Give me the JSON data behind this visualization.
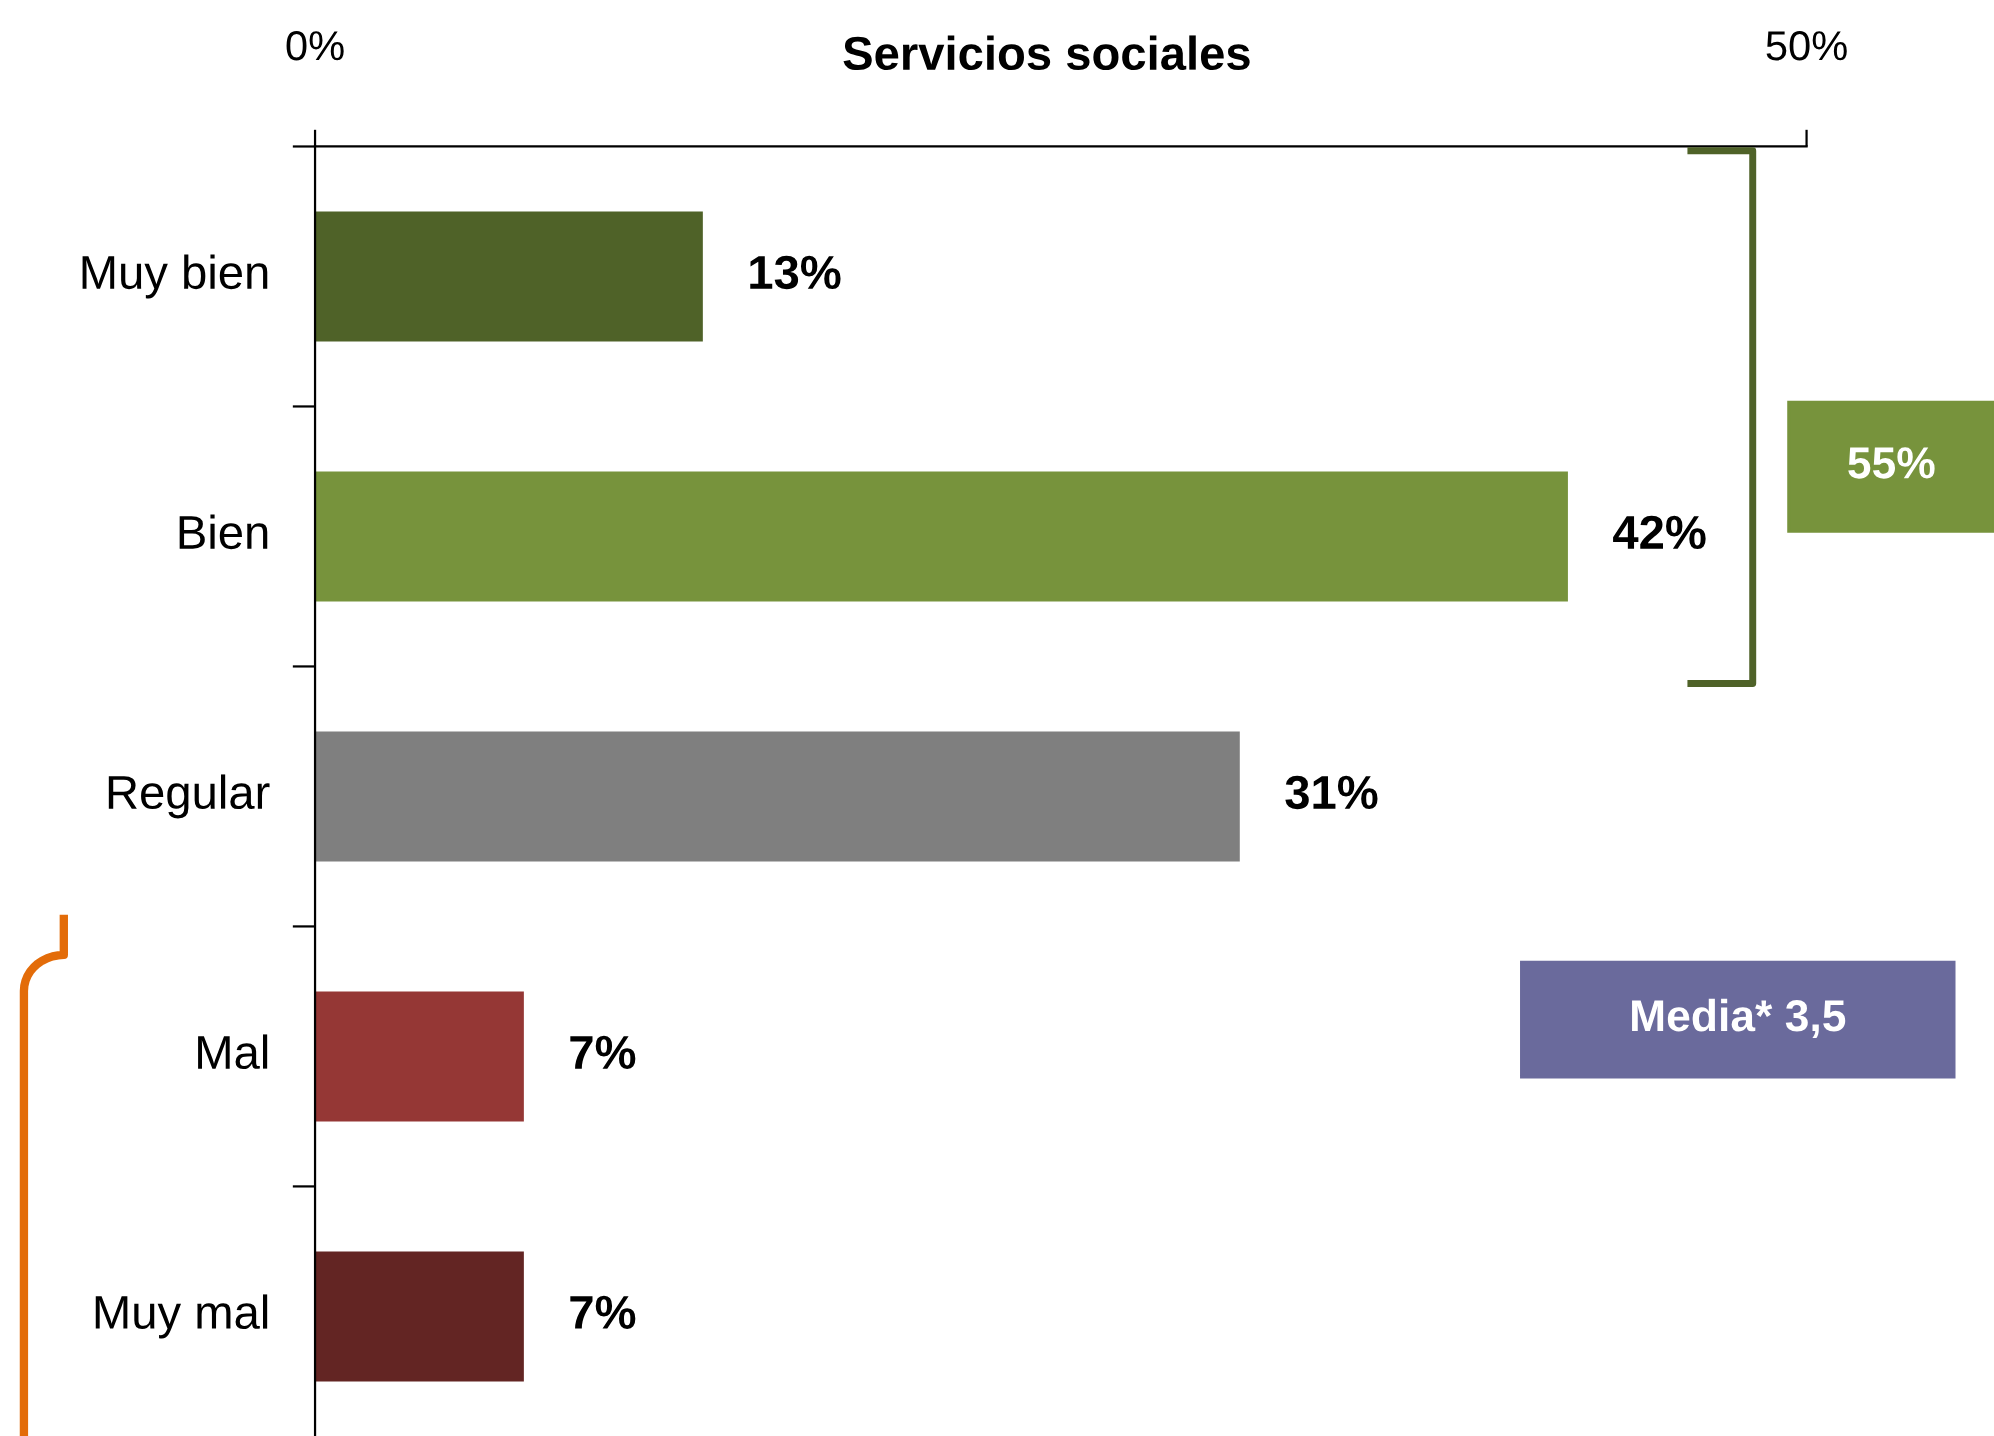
{
  "chart_data": {
    "type": "bar",
    "orientation": "horizontal",
    "title": "Servicios sociales",
    "categories": [
      "Muy bien",
      "Bien",
      "Regular",
      "Mal",
      "Muy mal"
    ],
    "values": [
      13,
      42,
      31,
      7,
      7
    ],
    "colors": [
      "#4f6228",
      "#77933c",
      "#7f7f7f",
      "#953735",
      "#632523"
    ],
    "value_labels": [
      "13%",
      "42%",
      "31%",
      "7%",
      "7%"
    ],
    "xlim": [
      0,
      50
    ],
    "xticks": [
      {
        "value": 0,
        "label": "0%"
      },
      {
        "value": 50,
        "label": "50%"
      }
    ],
    "grid": false,
    "legend": false,
    "annotations": [
      "55%",
      "Media* 3,5"
    ]
  }
}
